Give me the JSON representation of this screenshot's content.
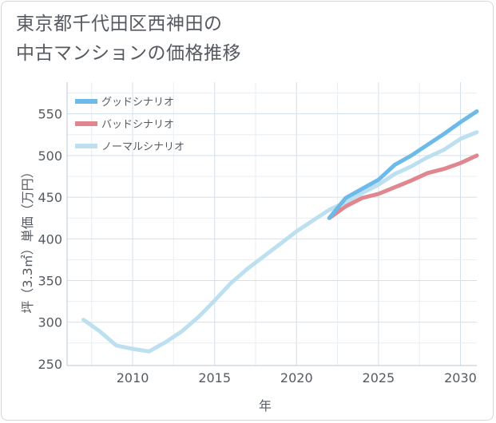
{
  "chart_data": {
    "type": "line",
    "title_lines": [
      "東京都千代田区西神田の",
      "中古マンションの価格推移"
    ],
    "xlabel": "年",
    "ylabel": "坪（3.3㎡）単価（万円）",
    "xlim": [
      2006,
      2031
    ],
    "ylim": [
      248,
      588
    ],
    "xticks": [
      2010,
      2015,
      2020,
      2025,
      2030
    ],
    "yticks": [
      250,
      300,
      350,
      400,
      450,
      500,
      550
    ],
    "grid": true,
    "legend_position": "top-left",
    "series": [
      {
        "name": "グッドシナリオ",
        "color": "#6bbaea",
        "points": [
          [
            2022,
            425
          ],
          [
            2023,
            449
          ],
          [
            2024,
            460
          ],
          [
            2025,
            471
          ],
          [
            2026,
            489
          ],
          [
            2027,
            500
          ],
          [
            2028,
            513
          ],
          [
            2029,
            526
          ],
          [
            2030,
            540
          ],
          [
            2031,
            553
          ]
        ]
      },
      {
        "name": "バッドシナリオ",
        "color": "#e0868f",
        "points": [
          [
            2022,
            425
          ],
          [
            2023,
            439
          ],
          [
            2024,
            449
          ],
          [
            2025,
            454
          ],
          [
            2026,
            462
          ],
          [
            2027,
            470
          ],
          [
            2028,
            479
          ],
          [
            2029,
            484
          ],
          [
            2030,
            491
          ],
          [
            2031,
            500
          ]
        ]
      },
      {
        "name": "ノーマルシナリオ",
        "color": "#bde0f1",
        "points": [
          [
            2007,
            303
          ],
          [
            2008,
            289
          ],
          [
            2009,
            272
          ],
          [
            2010,
            268
          ],
          [
            2011,
            265
          ],
          [
            2012,
            276
          ],
          [
            2013,
            289
          ],
          [
            2014,
            306
          ],
          [
            2015,
            326
          ],
          [
            2016,
            347
          ],
          [
            2017,
            364
          ],
          [
            2018,
            379
          ],
          [
            2019,
            394
          ],
          [
            2020,
            409
          ],
          [
            2021,
            422
          ],
          [
            2022,
            435
          ],
          [
            2023,
            444
          ],
          [
            2024,
            455
          ],
          [
            2025,
            465
          ],
          [
            2026,
            478
          ],
          [
            2027,
            487
          ],
          [
            2028,
            498
          ],
          [
            2029,
            507
          ],
          [
            2030,
            520
          ],
          [
            2031,
            528
          ]
        ]
      }
    ]
  }
}
